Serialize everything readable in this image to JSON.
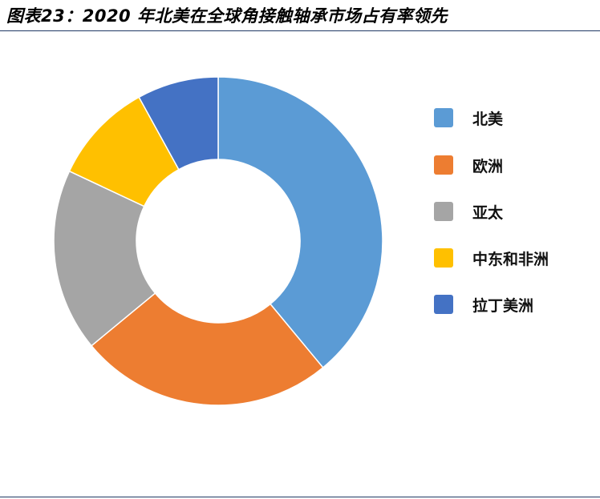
{
  "figure": {
    "title": "图表23：2020 年北美在全球角接触轴承市场占有率领先"
  },
  "chart_data": {
    "type": "pie",
    "donut": true,
    "legend_position": "right",
    "categories": [
      "北美",
      "欧洲",
      "亚太",
      "中东和非洲",
      "拉丁美洲"
    ],
    "values": [
      39,
      25,
      18,
      10,
      8
    ],
    "unit": "%",
    "colors": [
      "#5b9bd5",
      "#ed7d31",
      "#a5a5a5",
      "#ffc000",
      "#4472c4"
    ]
  }
}
